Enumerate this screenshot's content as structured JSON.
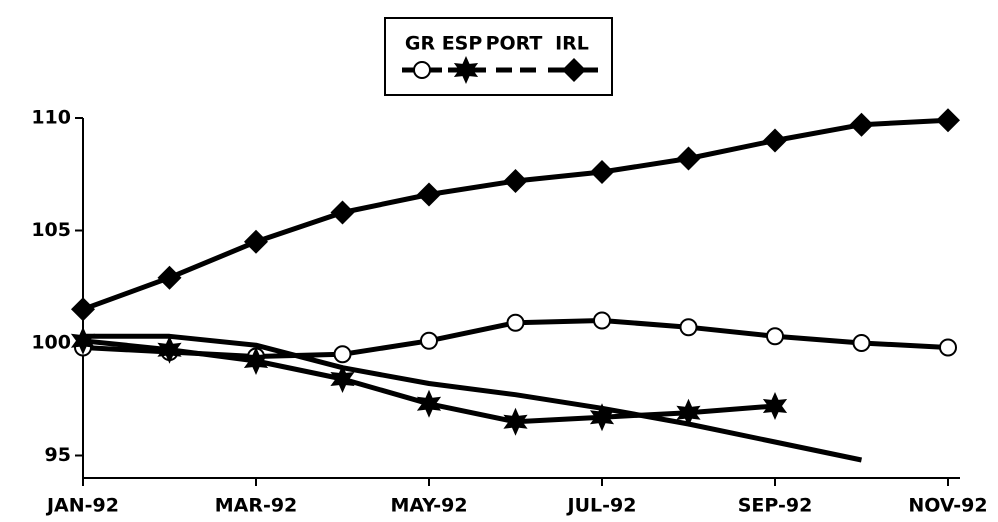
{
  "chart_data": {
    "type": "line",
    "categories": [
      "JAN-92",
      null,
      "MAR-92",
      null,
      "MAY-92",
      null,
      "JUL-92",
      null,
      "SEP-92",
      null,
      "NOV-92"
    ],
    "series": [
      {
        "name": "GR",
        "color": "#000000",
        "marker": "circle",
        "values": [
          99.8,
          99.6,
          99.4,
          99.5,
          100.1,
          100.9,
          101.0,
          100.7,
          100.3,
          100.0,
          99.8
        ]
      },
      {
        "name": "ESP",
        "color": "#000000",
        "marker": "star",
        "values": [
          100.1,
          99.7,
          99.2,
          98.4,
          97.3,
          96.5,
          96.7,
          96.9,
          97.2,
          null,
          null
        ]
      },
      {
        "name": "PORT",
        "color": "#000000",
        "marker": "none",
        "values": [
          100.3,
          100.3,
          99.9,
          98.9,
          98.2,
          97.7,
          97.1,
          96.4,
          95.6,
          94.8,
          null
        ]
      },
      {
        "name": "IRL",
        "color": "#000000",
        "marker": "diamond",
        "values": [
          101.5,
          102.9,
          104.5,
          105.8,
          106.6,
          107.2,
          107.6,
          108.2,
          109.0,
          109.7,
          109.9
        ]
      }
    ],
    "ylim": [
      94,
      110
    ],
    "yticks": [
      95,
      100,
      105,
      110
    ],
    "legend": "top"
  }
}
